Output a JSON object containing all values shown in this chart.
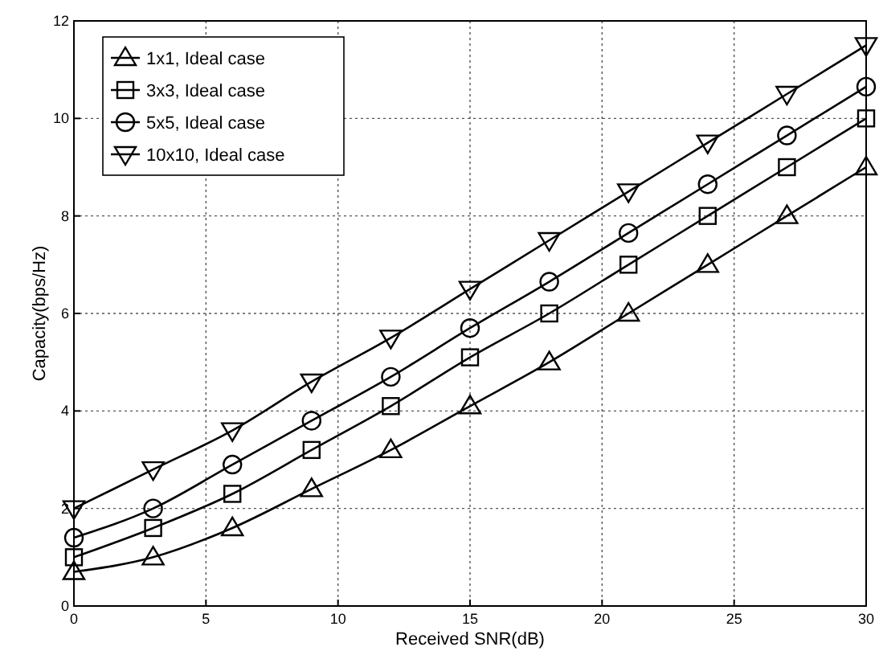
{
  "chart_data": {
    "type": "line",
    "xlabel": "Received SNR(dB)",
    "ylabel": "Capacity(bps/Hz)",
    "x": [
      0,
      3,
      6,
      9,
      12,
      15,
      18,
      21,
      24,
      27,
      30
    ],
    "xlim": [
      0,
      30
    ],
    "xticks": [
      0,
      5,
      10,
      15,
      20,
      25,
      30
    ],
    "ylim": [
      0,
      12
    ],
    "yticks": [
      0,
      2,
      4,
      6,
      8,
      10,
      12
    ],
    "grid": true,
    "legend": "top left",
    "line_style": "solid",
    "series": [
      {
        "name": "1x1, Ideal case",
        "color": "#000000",
        "marker": "triangle",
        "values": [
          0.7,
          1.0,
          1.6,
          2.4,
          3.2,
          4.1,
          5.0,
          6.0,
          7.0,
          8.0,
          9.0
        ]
      },
      {
        "name": "3x3, Ideal case",
        "color": "#000000",
        "marker": "square",
        "values": [
          1.0,
          1.6,
          2.3,
          3.2,
          4.1,
          5.1,
          6.0,
          7.0,
          8.0,
          9.0,
          10.0
        ]
      },
      {
        "name": "5x5, Ideal case",
        "color": "#000000",
        "marker": "circle",
        "values": [
          1.4,
          2.0,
          2.9,
          3.8,
          4.7,
          5.7,
          6.65,
          7.65,
          8.65,
          9.65,
          10.65
        ]
      },
      {
        "name": "10x10, Ideal case",
        "color": "#000000",
        "marker": "triangle-down",
        "values": [
          2.0,
          2.8,
          3.6,
          4.6,
          5.5,
          6.5,
          7.5,
          8.5,
          9.5,
          10.5,
          11.5
        ]
      }
    ]
  }
}
